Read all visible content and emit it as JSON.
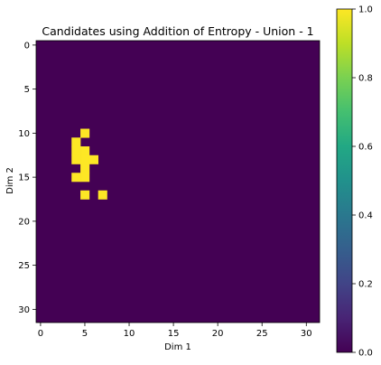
{
  "chart_data": {
    "type": "heatmap",
    "title": "Candidates using Addition of Entropy - Union - 1",
    "xlabel": "Dim 1",
    "ylabel": "Dim 2",
    "xlim": [
      -0.5,
      31.5
    ],
    "ylim": [
      31.5,
      -0.5
    ],
    "grid_size": [
      32,
      32
    ],
    "colormap": "viridis",
    "background_value": 0.0,
    "colorbar": {
      "range": [
        0.0,
        1.0
      ],
      "tick_labels": [
        "0.0",
        "0.2",
        "0.4",
        "0.6",
        "0.8",
        "1.0"
      ],
      "ticks": [
        0.0,
        0.2,
        0.4,
        0.6,
        0.8,
        1.0
      ]
    },
    "x_ticks": [
      0,
      5,
      10,
      15,
      20,
      25,
      30
    ],
    "x_tick_labels": [
      "0",
      "5",
      "10",
      "15",
      "20",
      "25",
      "30"
    ],
    "y_ticks": [
      0,
      5,
      10,
      15,
      20,
      25,
      30
    ],
    "y_tick_labels": [
      "0",
      "5",
      "10",
      "15",
      "20",
      "25",
      "30"
    ],
    "nonzero_cells": [
      {
        "x": 5,
        "y": 10,
        "value": 1.0
      },
      {
        "x": 4,
        "y": 11,
        "value": 1.0
      },
      {
        "x": 4,
        "y": 12,
        "value": 1.0
      },
      {
        "x": 5,
        "y": 12,
        "value": 1.0
      },
      {
        "x": 4,
        "y": 13,
        "value": 1.0
      },
      {
        "x": 5,
        "y": 13,
        "value": 1.0
      },
      {
        "x": 6,
        "y": 13,
        "value": 1.0
      },
      {
        "x": 5,
        "y": 14,
        "value": 1.0
      },
      {
        "x": 4,
        "y": 15,
        "value": 1.0
      },
      {
        "x": 5,
        "y": 15,
        "value": 1.0
      },
      {
        "x": 5,
        "y": 17,
        "value": 1.0
      },
      {
        "x": 7,
        "y": 17,
        "value": 1.0
      }
    ],
    "colors": {
      "low": "#440154",
      "high": "#fde725"
    }
  }
}
